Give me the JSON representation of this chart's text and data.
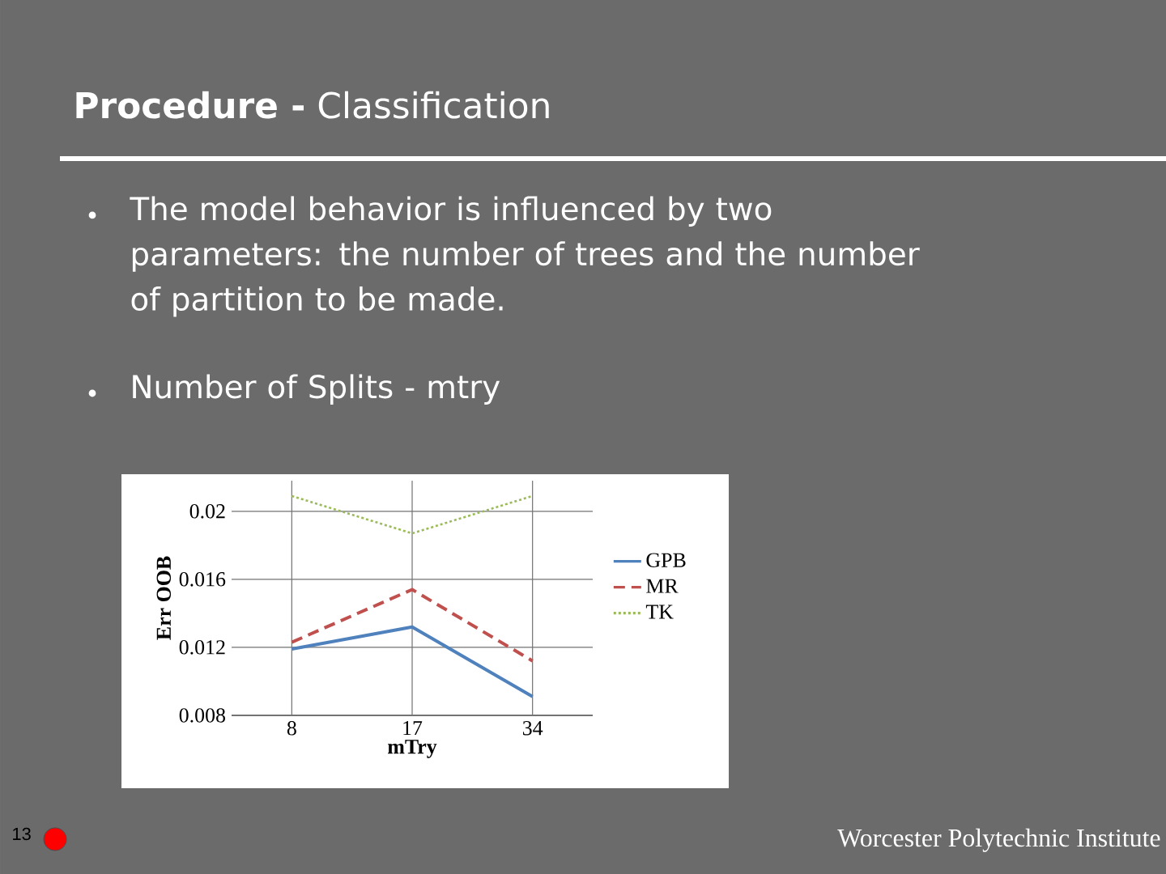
{
  "chart_data": {
    "type": "line",
    "title": "**Procedure -** Classification",
    "annotations": [
      "The model behavior is influenced by two parameters: the number of trees and the number of partition to be made.",
      "Number of Splits - mtry",
      "13",
      "Worcester Polytechnic Institute"
    ],
    "xlabel": "mTry",
    "ylabel": "Err OOB",
    "categories": [
      "8",
      "17",
      "34"
    ],
    "series": [
      {
        "name": "GPB",
        "color": "#4f81bd",
        "line_style": "solid",
        "values": [
          0.0119,
          0.0132,
          0.0091
        ]
      },
      {
        "name": "MR",
        "color": "#c0504d",
        "line_style": "dashed",
        "values": [
          0.0123,
          0.0154,
          0.0112
        ]
      },
      {
        "name": "TK",
        "color": "#9bbb59",
        "line_style": "dotted",
        "values": [
          0.0209,
          0.0187,
          0.0209
        ]
      }
    ],
    "ylim": [
      0.008,
      0.0218
    ],
    "yticks": [
      0.008,
      0.012,
      0.016,
      0.02
    ],
    "grid": true,
    "legend": "right",
    "marker": "none"
  }
}
